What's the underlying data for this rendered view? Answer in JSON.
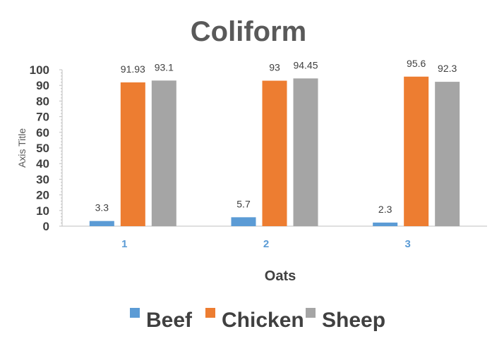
{
  "chart_data": {
    "type": "bar",
    "title": "Coliform",
    "xlabel": "Oats",
    "ylabel": "Axis Title",
    "categories": [
      "1",
      "2",
      "3"
    ],
    "ylim": [
      0,
      100
    ],
    "yticks": [
      "0",
      "10",
      "20",
      "30",
      "40",
      "50",
      "60",
      "70",
      "80",
      "90",
      "100"
    ],
    "series": [
      {
        "name": "Beef",
        "color": "#5b9bd5",
        "values": [
          3.3,
          5.7,
          2.3
        ],
        "labels": [
          "3.3",
          "5.7",
          "2.3"
        ]
      },
      {
        "name": "Chicken",
        "color": "#ed7d31",
        "values": [
          91.93,
          93,
          95.6
        ],
        "labels": [
          "91.93",
          "93",
          "95.6"
        ]
      },
      {
        "name": "Sheep",
        "color": "#a5a5a5",
        "values": [
          93.1,
          94.45,
          92.3
        ],
        "labels": [
          "93.1",
          "94.45",
          "92.3"
        ]
      }
    ],
    "grid": false,
    "legend_position": "bottom"
  }
}
